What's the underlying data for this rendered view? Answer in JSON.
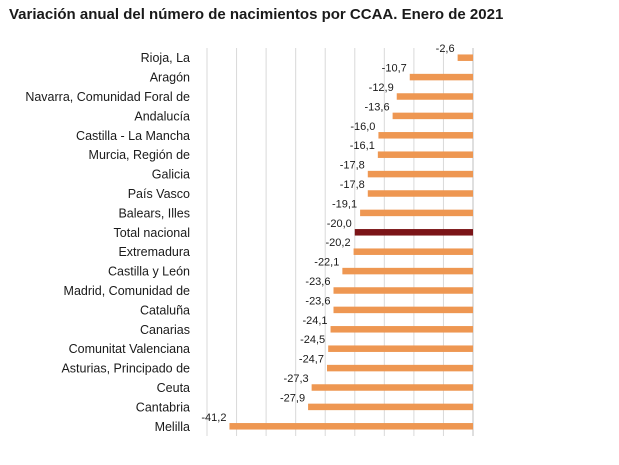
{
  "chart_data": {
    "type": "bar",
    "orientation": "horizontal",
    "title": "Variación anual del número de nacimientos por CCAA. Enero de 2021",
    "xlabel": "",
    "ylabel": "",
    "xlim": [
      -45,
      0
    ],
    "grid": true,
    "categories": [
      "Rioja, La",
      "Aragón",
      "Navarra, Comunidad Foral de",
      "Andalucía",
      "Castilla - La Mancha",
      "Murcia, Región de",
      "Galicia",
      "País Vasco",
      "Balears, Illes",
      "Total nacional",
      "Extremadura",
      "Castilla y León",
      "Madrid, Comunidad de",
      "Cataluña",
      "Canarias",
      "Comunitat Valenciana",
      "Asturias, Principado de",
      "Ceuta",
      "Cantabria",
      "Melilla"
    ],
    "values": [
      -2.6,
      -10.7,
      -12.9,
      -13.6,
      -16.0,
      -16.1,
      -17.8,
      -17.8,
      -19.1,
      -20.0,
      -20.2,
      -22.1,
      -23.6,
      -23.6,
      -24.1,
      -24.5,
      -24.7,
      -27.3,
      -27.9,
      -41.2
    ],
    "value_labels": [
      "-2,6",
      "-10,7",
      "-12,9",
      "-13,6",
      "-16,0",
      "-16,1",
      "-17,8",
      "-17,8",
      "-19,1",
      "-20,0",
      "-20,2",
      "-22,1",
      "-23,6",
      "-23,6",
      "-24,1",
      "-24,5",
      "-24,7",
      "-27,3",
      "-27,9",
      "-41,2"
    ],
    "highlight_category": "Total nacional",
    "colors": {
      "bar": "#ee9752",
      "highlight": "#7b1417",
      "grid": "#d9d9d9",
      "axis": "#bfbfbf"
    }
  }
}
